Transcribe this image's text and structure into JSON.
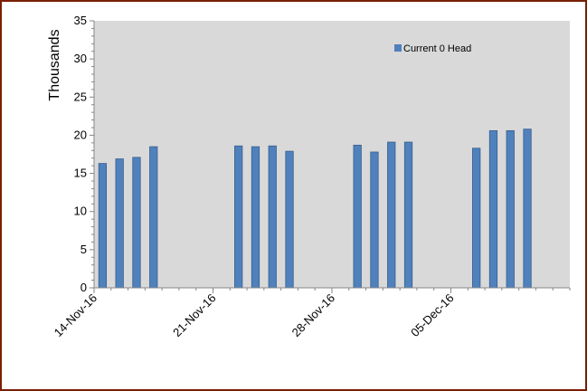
{
  "chart_data": {
    "type": "bar",
    "ylabel": "Thousands",
    "xlabel": "",
    "title": "",
    "ylim": [
      0,
      35
    ],
    "yticks": [
      0,
      5,
      10,
      15,
      20,
      25,
      30,
      35
    ],
    "x_range": [
      "2016-11-14",
      "2016-12-11"
    ],
    "x_ticks": [
      {
        "date": "2016-11-14",
        "label": "14-Nov-16"
      },
      {
        "date": "2016-11-21",
        "label": "21-Nov-16"
      },
      {
        "date": "2016-11-28",
        "label": "28-Nov-16"
      },
      {
        "date": "2016-12-05",
        "label": "05-Dec-16"
      }
    ],
    "grid": false,
    "legend_position": "top-right",
    "series": [
      {
        "name": "Current 0 Head",
        "color": "#4f81bd",
        "points": [
          {
            "date": "2016-11-14",
            "value": 16.3
          },
          {
            "date": "2016-11-15",
            "value": 16.9
          },
          {
            "date": "2016-11-16",
            "value": 17.1
          },
          {
            "date": "2016-11-17",
            "value": 18.5
          },
          {
            "date": "2016-11-22",
            "value": 18.6
          },
          {
            "date": "2016-11-23",
            "value": 18.5
          },
          {
            "date": "2016-11-24",
            "value": 18.6
          },
          {
            "date": "2016-11-25",
            "value": 17.9
          },
          {
            "date": "2016-11-29",
            "value": 18.7
          },
          {
            "date": "2016-11-30",
            "value": 17.8
          },
          {
            "date": "2016-12-01",
            "value": 19.1
          },
          {
            "date": "2016-12-02",
            "value": 19.1
          },
          {
            "date": "2016-12-06",
            "value": 18.3
          },
          {
            "date": "2016-12-07",
            "value": 20.6
          },
          {
            "date": "2016-12-08",
            "value": 20.6
          },
          {
            "date": "2016-12-09",
            "value": 20.8
          }
        ]
      }
    ]
  }
}
